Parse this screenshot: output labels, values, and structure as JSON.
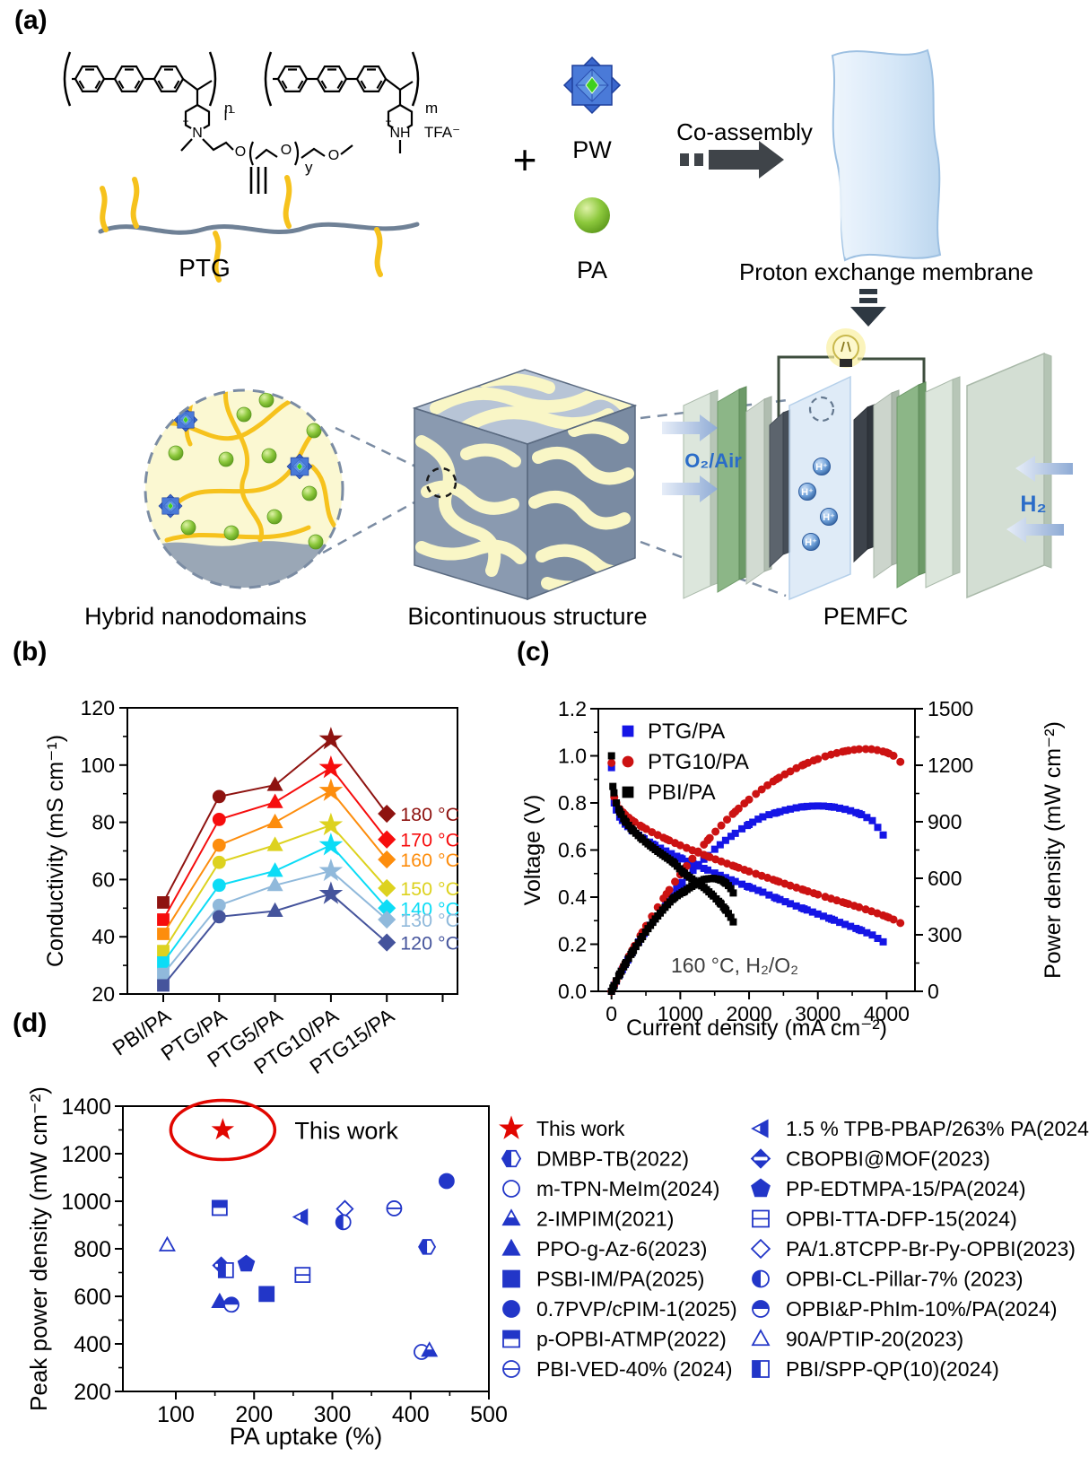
{
  "panel_a": {
    "label": "(a)",
    "ptg": "PTG",
    "plus": "+",
    "pw": "PW",
    "pa": "PA",
    "co_assembly": "Co-assembly",
    "membrane_label": "Proton exchange membrane",
    "hybrid_label": "Hybrid nanodomains",
    "bicontinuous_label": "Bicontinuous structure",
    "pemfc_label": "PEMFC",
    "o2_air": "O₂/Air",
    "h2": "H₂",
    "h_plus": "H⁺",
    "chem": {
      "n": "n",
      "m": "m",
      "y": "y",
      "N": "N",
      "plus": "+",
      "I_minus": "I⁻",
      "O": "O",
      "NH": "NH",
      "TFA": "TFA⁻"
    }
  },
  "chart_data": [
    {
      "panel_label": "(b)",
      "type": "line",
      "categories": [
        "PBI/PA",
        "PTG/PA",
        "PTG5/PA",
        "PTG10/PA",
        "PTG15/PA"
      ],
      "category_markers": [
        "square",
        "circle",
        "triangle",
        "star",
        "diamond"
      ],
      "ylabel": "Conductivity (mS cm⁻¹)",
      "ylim": [
        20,
        120
      ],
      "ytick_step": 20,
      "grid": false,
      "series": [
        {
          "name": "180 °C",
          "color": "#8e1310",
          "values": [
            52,
            89,
            93,
            109,
            83
          ]
        },
        {
          "name": "170 °C",
          "color": "#f60d0d",
          "values": [
            46,
            81,
            87,
            99,
            74
          ]
        },
        {
          "name": "160 °C",
          "color": "#fd8d0d",
          "values": [
            41,
            72,
            80,
            91,
            67
          ]
        },
        {
          "name": "150 °C",
          "color": "#ddd21f",
          "values": [
            35,
            66,
            72,
            79,
            57
          ]
        },
        {
          "name": "140 °C",
          "color": "#0cdcf6",
          "values": [
            31,
            58,
            63,
            72,
            50
          ]
        },
        {
          "name": "130 °C",
          "color": "#90b9db",
          "values": [
            27,
            51,
            58,
            63,
            46
          ]
        },
        {
          "name": "120 °C",
          "color": "#45549c",
          "values": [
            23,
            47,
            49,
            55,
            38
          ]
        }
      ]
    },
    {
      "panel_label": "(c)",
      "type": "scatter-line",
      "xlabel": "Current density (mA cm⁻²)",
      "xlim": [
        0,
        4400
      ],
      "xtick_step": 1000,
      "ylabel_left": "Voltage (V)",
      "ylim_left": [
        0,
        1.2
      ],
      "ylabel_right": "Power density (mW cm⁻²)",
      "ylim_right": [
        0,
        1500
      ],
      "annotation": "160 °C, H₂/O₂",
      "note": "power density curve = voltage × current density (mW cm⁻²)",
      "series": [
        {
          "name": "PTG/PA",
          "color": "#1515e6",
          "marker": "square",
          "polarization": [
            [
              0,
              0.95
            ],
            [
              8,
              0.87
            ],
            [
              20,
              0.83
            ],
            [
              40,
              0.8
            ],
            [
              70,
              0.77
            ],
            [
              120,
              0.74
            ],
            [
              200,
              0.71
            ],
            [
              300,
              0.682
            ],
            [
              450,
              0.652
            ],
            [
              600,
              0.625
            ],
            [
              800,
              0.594
            ],
            [
              1000,
              0.566
            ],
            [
              1200,
              0.54
            ],
            [
              1400,
              0.515
            ],
            [
              1600,
              0.49
            ],
            [
              1800,
              0.466
            ],
            [
              2000,
              0.443
            ],
            [
              2200,
              0.421
            ],
            [
              2400,
              0.395
            ],
            [
              2600,
              0.372
            ],
            [
              2800,
              0.35
            ],
            [
              3000,
              0.328
            ],
            [
              3200,
              0.306
            ],
            [
              3400,
              0.284
            ],
            [
              3600,
              0.262
            ],
            [
              3800,
              0.238
            ],
            [
              3950,
              0.21
            ]
          ],
          "peak_power_mw_cm2": 984
        },
        {
          "name": "PTG10/PA",
          "color": "#cc1212",
          "marker": "circle",
          "polarization": [
            [
              0,
              0.97
            ],
            [
              8,
              0.89
            ],
            [
              20,
              0.855
            ],
            [
              40,
              0.825
            ],
            [
              70,
              0.8
            ],
            [
              120,
              0.775
            ],
            [
              200,
              0.75
            ],
            [
              300,
              0.726
            ],
            [
              450,
              0.698
            ],
            [
              600,
              0.674
            ],
            [
              800,
              0.646
            ],
            [
              1000,
              0.62
            ],
            [
              1200,
              0.596
            ],
            [
              1400,
              0.573
            ],
            [
              1600,
              0.551
            ],
            [
              1800,
              0.53
            ],
            [
              2000,
              0.509
            ],
            [
              2200,
              0.489
            ],
            [
              2400,
              0.469
            ],
            [
              2600,
              0.449
            ],
            [
              2800,
              0.43
            ],
            [
              3000,
              0.411
            ],
            [
              3200,
              0.393
            ],
            [
              3400,
              0.375
            ],
            [
              3600,
              0.357
            ],
            [
              3800,
              0.338
            ],
            [
              4000,
              0.317
            ],
            [
              4100,
              0.305
            ],
            [
              4200,
              0.29
            ]
          ],
          "peak_power_mw_cm2": 1285
        },
        {
          "name": "PBI/PA",
          "color": "#000000",
          "marker": "square",
          "polarization": [
            [
              0,
              1.0
            ],
            [
              8,
              0.92
            ],
            [
              20,
              0.87
            ],
            [
              40,
              0.835
            ],
            [
              70,
              0.8
            ],
            [
              120,
              0.762
            ],
            [
              200,
              0.722
            ],
            [
              300,
              0.686
            ],
            [
              450,
              0.645
            ],
            [
              600,
              0.61
            ],
            [
              750,
              0.578
            ],
            [
              900,
              0.548
            ],
            [
              1050,
              0.503
            ],
            [
              1200,
              0.47
            ],
            [
              1350,
              0.44
            ],
            [
              1480,
              0.405
            ],
            [
              1580,
              0.375
            ],
            [
              1650,
              0.35
            ],
            [
              1700,
              0.33
            ],
            [
              1740,
              0.312
            ],
            [
              1770,
              0.295
            ]
          ],
          "peak_power_mw_cm2": 599
        }
      ]
    },
    {
      "panel_label": "(d)",
      "type": "scatter",
      "xlabel": "PA uptake (%)",
      "xlim": [
        32,
        500
      ],
      "xticks": [
        100,
        200,
        300,
        400,
        500
      ],
      "ylabel": "Peak power density (mW cm⁻²)",
      "ylim": [
        200,
        1400
      ],
      "ytick_step": 200,
      "accent_blue": "#2236c8",
      "highlight": {
        "text": "This work",
        "x": 160,
        "y": 1300,
        "color": "#e10600"
      },
      "points": [
        {
          "label": "This work",
          "marker": "star",
          "color": "#e10600",
          "x": 160,
          "y": 1300
        },
        {
          "label": "DMBP-TB(2022)",
          "marker": "hex-half",
          "x": 421,
          "y": 808
        },
        {
          "label": "m-TPN-MeIm(2024)",
          "marker": "circle-open",
          "x": 414,
          "y": 366
        },
        {
          "label": "2-IMPIM(2021)",
          "marker": "tri-bottom",
          "x": 424,
          "y": 372
        },
        {
          "label": "PPO-g-Az-6(2023)",
          "marker": "tri-fill",
          "x": 156,
          "y": 577
        },
        {
          "label": "PSBI-IM/PA(2025)",
          "marker": "square-fill",
          "x": 216,
          "y": 610
        },
        {
          "label": "0.7PVP/cPIM-1(2025)",
          "marker": "circle-fill",
          "x": 446,
          "y": 1085
        },
        {
          "label": "p-OPBI-ATMP(2022)",
          "marker": "square-top",
          "x": 156,
          "y": 972
        },
        {
          "label": "PBI-VED-40% (2024)",
          "marker": "circle-hline",
          "x": 379,
          "y": 970
        },
        {
          "label": "1.5 % TPB-PBAP/263% PA(2024)",
          "marker": "tri-left",
          "x": 260,
          "y": 934
        },
        {
          "label": "CBOPBI@MOF(2023)",
          "marker": "diamond-band",
          "x": 158,
          "y": 730
        },
        {
          "label": "PP-EDTMPA-15/PA(2024)",
          "marker": "pentagon",
          "x": 190,
          "y": 736
        },
        {
          "label": "OPBI-TTA-DFP-15(2024)",
          "marker": "square-hline",
          "x": 262,
          "y": 690
        },
        {
          "label": "PA/1.8TCPP-Br-Py-OPBI(2023)",
          "marker": "diamond-open",
          "x": 316,
          "y": 968
        },
        {
          "label": "OPBI-CL-Pillar-7% (2023)",
          "marker": "circle-left",
          "x": 314,
          "y": 912
        },
        {
          "label": "OPBI&P-PhIm-10%/PA(2024)",
          "marker": "circle-top",
          "x": 171,
          "y": 565
        },
        {
          "label": "90A/PTIP-20(2023)",
          "marker": "tri-open",
          "x": 89,
          "y": 815
        },
        {
          "label": "PBI/SPP-QP(10)(2024)",
          "marker": "square-left",
          "x": 164,
          "y": 710
        }
      ],
      "legend_columns": [
        [
          0,
          1,
          2,
          3,
          4,
          5,
          6,
          7,
          8
        ],
        [
          9,
          10,
          11,
          12,
          13,
          14,
          15,
          16,
          17
        ]
      ]
    }
  ]
}
